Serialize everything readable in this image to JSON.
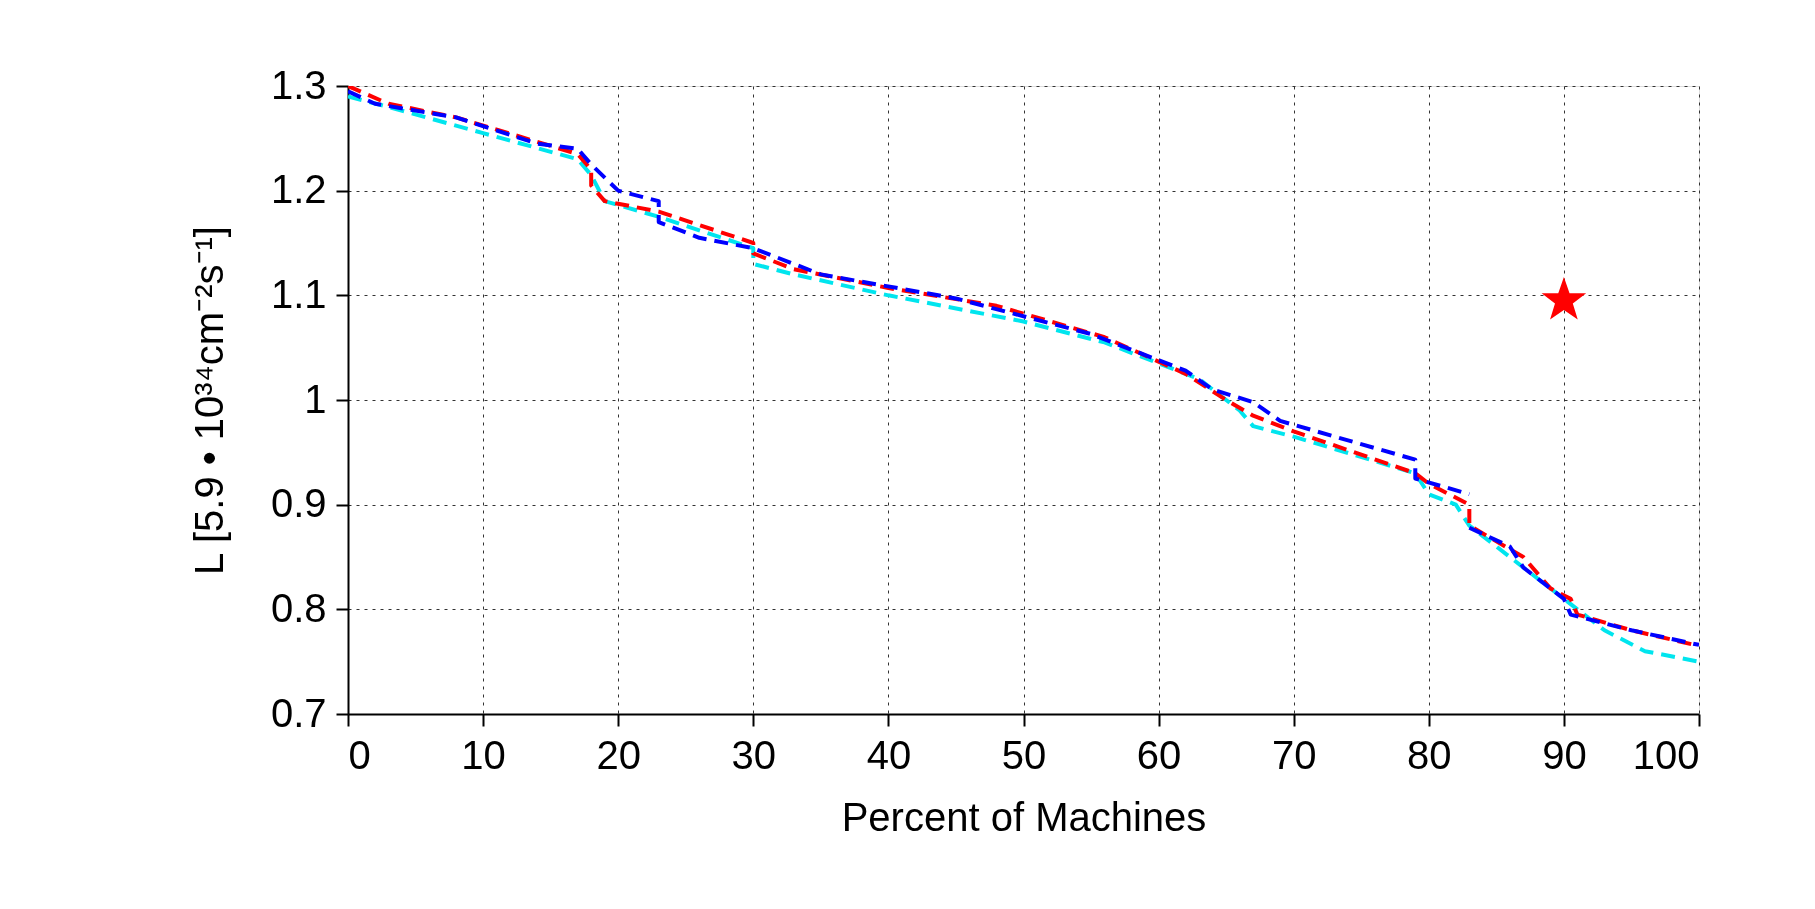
{
  "chart_data": {
    "type": "line",
    "xlabel": "Percent of Machines",
    "ylabel": "L [5.9 • 10³⁴cm⁻²s⁻¹]",
    "xlim": [
      0,
      100
    ],
    "xticks": [
      0,
      10,
      20,
      30,
      40,
      50,
      60,
      70,
      80,
      90,
      100
    ],
    "ylim": [
      0.7,
      1.3
    ],
    "yticks": [
      0.7,
      0.8,
      0.9,
      1,
      1.1,
      1.2,
      1.3
    ],
    "grid": true,
    "line_style": "dashed",
    "series": [
      {
        "color": "#00e5ee",
        "x": [
          0,
          3,
          10,
          17,
          18,
          19,
          23,
          30,
          30,
          33,
          40,
          50,
          56,
          60,
          63,
          65,
          66,
          67,
          70,
          79,
          80,
          82,
          83,
          89,
          91,
          93,
          96,
          100
        ],
        "values": [
          1.29,
          1.28,
          1.255,
          1.23,
          1.215,
          1.19,
          1.175,
          1.145,
          1.13,
          1.12,
          1.1,
          1.075,
          1.055,
          1.035,
          1.02,
          1.0,
          0.99,
          0.975,
          0.965,
          0.93,
          0.91,
          0.9,
          0.88,
          0.82,
          0.8,
          0.78,
          0.76,
          0.75
        ]
      },
      {
        "color": "#ff0000",
        "x": [
          0,
          3,
          8,
          17,
          18,
          18,
          19,
          23,
          30,
          30,
          33,
          40,
          48,
          56,
          62,
          65,
          67,
          70,
          79,
          80,
          83,
          83,
          87,
          89,
          90.5,
          91,
          95,
          100
        ],
        "values": [
          1.3,
          1.283,
          1.27,
          1.235,
          1.22,
          1.205,
          1.19,
          1.18,
          1.15,
          1.14,
          1.125,
          1.107,
          1.09,
          1.06,
          1.025,
          1.0,
          0.985,
          0.97,
          0.93,
          0.92,
          0.9,
          0.88,
          0.85,
          0.82,
          0.81,
          0.795,
          0.78,
          0.765
        ]
      },
      {
        "color": "#0000ff",
        "x": [
          0,
          2,
          8,
          14,
          17,
          18,
          20,
          23,
          23,
          26,
          30,
          35,
          45,
          55,
          62,
          64,
          67,
          69,
          79,
          79,
          83,
          null,
          83,
          86,
          87,
          89,
          90,
          90.5,
          95,
          100
        ],
        "values": [
          1.295,
          1.283,
          1.27,
          1.245,
          1.24,
          1.225,
          1.2,
          1.19,
          1.17,
          1.155,
          1.145,
          1.12,
          1.097,
          1.063,
          1.028,
          1.01,
          0.998,
          0.98,
          0.943,
          0.925,
          0.91,
          null,
          0.878,
          0.86,
          0.84,
          0.82,
          0.81,
          0.795,
          0.78,
          0.766
        ]
      },
      {
        "type": "scatter",
        "marker": "star",
        "color": "#ff0000",
        "x": [
          90
        ],
        "values": [
          1.095
        ]
      }
    ]
  }
}
